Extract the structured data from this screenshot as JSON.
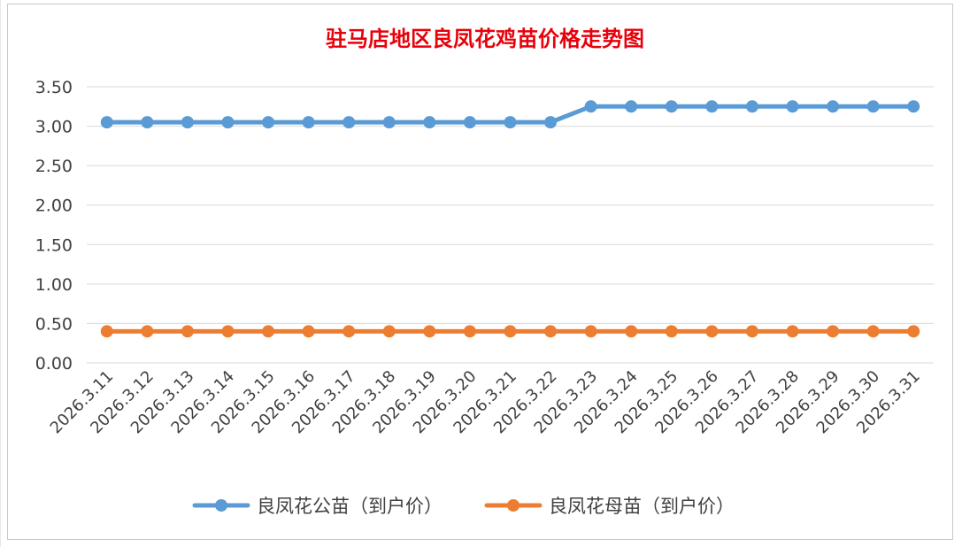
{
  "chart_data": {
    "type": "line",
    "title": "驻马店地区良凤花鸡苗价格走势图",
    "xlabel": "",
    "ylabel": "",
    "categories": [
      "2026.3.11",
      "2026.3.12",
      "2026.3.13",
      "2026.3.14",
      "2026.3.15",
      "2026.3.16",
      "2026.3.17",
      "2026.3.18",
      "2026.3.19",
      "2026.3.20",
      "2026.3.21",
      "2026.3.22",
      "2026.3.23",
      "2026.3.24",
      "2026.3.25",
      "2026.3.26",
      "2026.3.27",
      "2026.3.28",
      "2026.3.29",
      "2026.3.30",
      "2026.3.31"
    ],
    "ylim": [
      0,
      3.5
    ],
    "yticks": [
      "0.00",
      "0.50",
      "1.00",
      "1.50",
      "2.00",
      "2.50",
      "3.00",
      "3.50"
    ],
    "grid": true,
    "legend_position": "bottom",
    "series": [
      {
        "name": "良凤花公苗（到户价）",
        "color": "#5b9bd5",
        "values": [
          3.05,
          3.05,
          3.05,
          3.05,
          3.05,
          3.05,
          3.05,
          3.05,
          3.05,
          3.05,
          3.05,
          3.05,
          3.25,
          3.25,
          3.25,
          3.25,
          3.25,
          3.25,
          3.25,
          3.25,
          3.25
        ]
      },
      {
        "name": "良凤花母苗（到户价）",
        "color": "#ed7d31",
        "values": [
          0.4,
          0.4,
          0.4,
          0.4,
          0.4,
          0.4,
          0.4,
          0.4,
          0.4,
          0.4,
          0.4,
          0.4,
          0.4,
          0.4,
          0.4,
          0.4,
          0.4,
          0.4,
          0.4,
          0.4,
          0.4
        ]
      }
    ]
  }
}
